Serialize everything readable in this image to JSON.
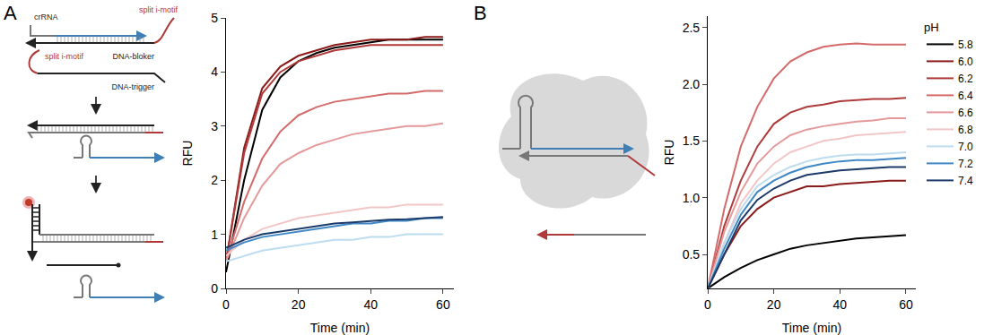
{
  "panel_letters": [
    "A",
    "B"
  ],
  "diagram_A": {
    "labels": {
      "crRNA": "crRNA",
      "split_imotif_top": "split i-motif",
      "blocker": "DNA-bloker",
      "split_imotif_left": "split i-motif",
      "trigger": "DNA-trigger"
    }
  },
  "chart_data": [
    {
      "type": "line",
      "x_label": "Time (min)",
      "y_label": "RFU",
      "x": [
        0,
        5,
        10,
        15,
        20,
        25,
        30,
        35,
        40,
        45,
        50,
        55,
        60
      ],
      "xlim": [
        0,
        63
      ],
      "xticks": [
        0,
        20,
        40,
        60
      ],
      "ylim": [
        0,
        5
      ],
      "yticks": [
        0,
        1,
        2,
        3,
        4,
        5
      ],
      "grid": false,
      "legend": false,
      "series": [
        {
          "name": "5.8",
          "color": "#000000",
          "values": [
            0.3,
            2.0,
            3.3,
            3.9,
            4.2,
            4.35,
            4.45,
            4.5,
            4.55,
            4.6,
            4.6,
            4.6,
            4.6
          ]
        },
        {
          "name": "6.0",
          "color": "#8b1a1a",
          "values": [
            0.5,
            2.6,
            3.7,
            4.1,
            4.3,
            4.4,
            4.5,
            4.55,
            4.6,
            4.6,
            4.6,
            4.65,
            4.65
          ]
        },
        {
          "name": "6.2",
          "color": "#b03a3a",
          "values": [
            0.5,
            2.5,
            3.6,
            4.0,
            4.2,
            4.3,
            4.4,
            4.45,
            4.5,
            4.5,
            4.5,
            4.5,
            4.5
          ]
        },
        {
          "name": "6.4",
          "color": "#d46a6a",
          "values": [
            0.5,
            1.6,
            2.4,
            2.9,
            3.2,
            3.35,
            3.45,
            3.5,
            3.55,
            3.6,
            3.6,
            3.65,
            3.65
          ]
        },
        {
          "name": "6.6",
          "color": "#e49a9a",
          "values": [
            0.5,
            1.3,
            1.9,
            2.3,
            2.5,
            2.65,
            2.75,
            2.85,
            2.9,
            2.95,
            3.0,
            3.0,
            3.05
          ]
        },
        {
          "name": "6.8",
          "color": "#f2c6c6",
          "values": [
            0.6,
            0.9,
            1.1,
            1.2,
            1.3,
            1.35,
            1.4,
            1.45,
            1.5,
            1.5,
            1.55,
            1.55,
            1.55
          ]
        },
        {
          "name": "7.0",
          "color": "#bcdcf0",
          "values": [
            0.5,
            0.6,
            0.7,
            0.75,
            0.8,
            0.85,
            0.9,
            0.9,
            0.95,
            0.95,
            1.0,
            1.0,
            1.0
          ]
        },
        {
          "name": "7.2",
          "color": "#3f88c5",
          "values": [
            0.7,
            0.85,
            0.95,
            1.0,
            1.05,
            1.1,
            1.15,
            1.2,
            1.2,
            1.25,
            1.25,
            1.3,
            1.3
          ]
        },
        {
          "name": "7.4",
          "color": "#1c3b6b",
          "values": [
            0.75,
            0.9,
            1.0,
            1.05,
            1.1,
            1.15,
            1.2,
            1.22,
            1.25,
            1.27,
            1.28,
            1.3,
            1.32
          ]
        }
      ]
    },
    {
      "type": "line",
      "x_label": "Time (min)",
      "y_label": "RFU",
      "x": [
        0,
        5,
        10,
        15,
        20,
        25,
        30,
        35,
        40,
        45,
        50,
        55,
        60
      ],
      "xlim": [
        0,
        63
      ],
      "xticks": [
        0,
        20,
        40,
        60
      ],
      "ylim": [
        0.2,
        2.6
      ],
      "yticks": [
        0.5,
        {
          "value": 1,
          "label": "1.0"
        },
        1.5,
        {
          "value": 2,
          "label": "2.0"
        },
        2.5
      ],
      "grid": false,
      "legend": "right",
      "legend_title": "pH",
      "series": [
        {
          "name": "5.8",
          "color": "#000000",
          "values": [
            0.2,
            0.3,
            0.38,
            0.45,
            0.5,
            0.55,
            0.58,
            0.6,
            0.62,
            0.64,
            0.65,
            0.66,
            0.67
          ]
        },
        {
          "name": "6.0",
          "color": "#8b1a1a",
          "values": [
            0.2,
            0.5,
            0.75,
            0.9,
            1.0,
            1.05,
            1.1,
            1.1,
            1.12,
            1.13,
            1.14,
            1.15,
            1.15
          ]
        },
        {
          "name": "6.2",
          "color": "#b03a3a",
          "values": [
            0.2,
            0.75,
            1.15,
            1.45,
            1.65,
            1.75,
            1.8,
            1.82,
            1.85,
            1.86,
            1.87,
            1.87,
            1.88
          ]
        },
        {
          "name": "6.4",
          "color": "#d46a6a",
          "values": [
            0.2,
            0.9,
            1.45,
            1.8,
            2.05,
            2.2,
            2.28,
            2.33,
            2.35,
            2.36,
            2.35,
            2.35,
            2.35
          ]
        },
        {
          "name": "6.6",
          "color": "#e49a9a",
          "values": [
            0.2,
            0.7,
            1.05,
            1.3,
            1.45,
            1.55,
            1.6,
            1.63,
            1.65,
            1.67,
            1.68,
            1.7,
            1.7
          ]
        },
        {
          "name": "6.8",
          "color": "#f2c6c6",
          "values": [
            0.2,
            0.6,
            0.95,
            1.15,
            1.3,
            1.4,
            1.45,
            1.5,
            1.52,
            1.55,
            1.56,
            1.57,
            1.58
          ]
        },
        {
          "name": "7.0",
          "color": "#bcdcf0",
          "values": [
            0.2,
            0.6,
            0.9,
            1.1,
            1.2,
            1.27,
            1.32,
            1.35,
            1.37,
            1.38,
            1.38,
            1.39,
            1.4
          ]
        },
        {
          "name": "7.2",
          "color": "#3f88c5",
          "values": [
            0.2,
            0.55,
            0.85,
            1.05,
            1.15,
            1.22,
            1.27,
            1.3,
            1.32,
            1.33,
            1.33,
            1.34,
            1.35
          ]
        },
        {
          "name": "7.4",
          "color": "#1c3b6b",
          "values": [
            0.2,
            0.5,
            0.8,
            0.98,
            1.08,
            1.15,
            1.2,
            1.22,
            1.24,
            1.25,
            1.26,
            1.27,
            1.27
          ]
        }
      ]
    }
  ]
}
